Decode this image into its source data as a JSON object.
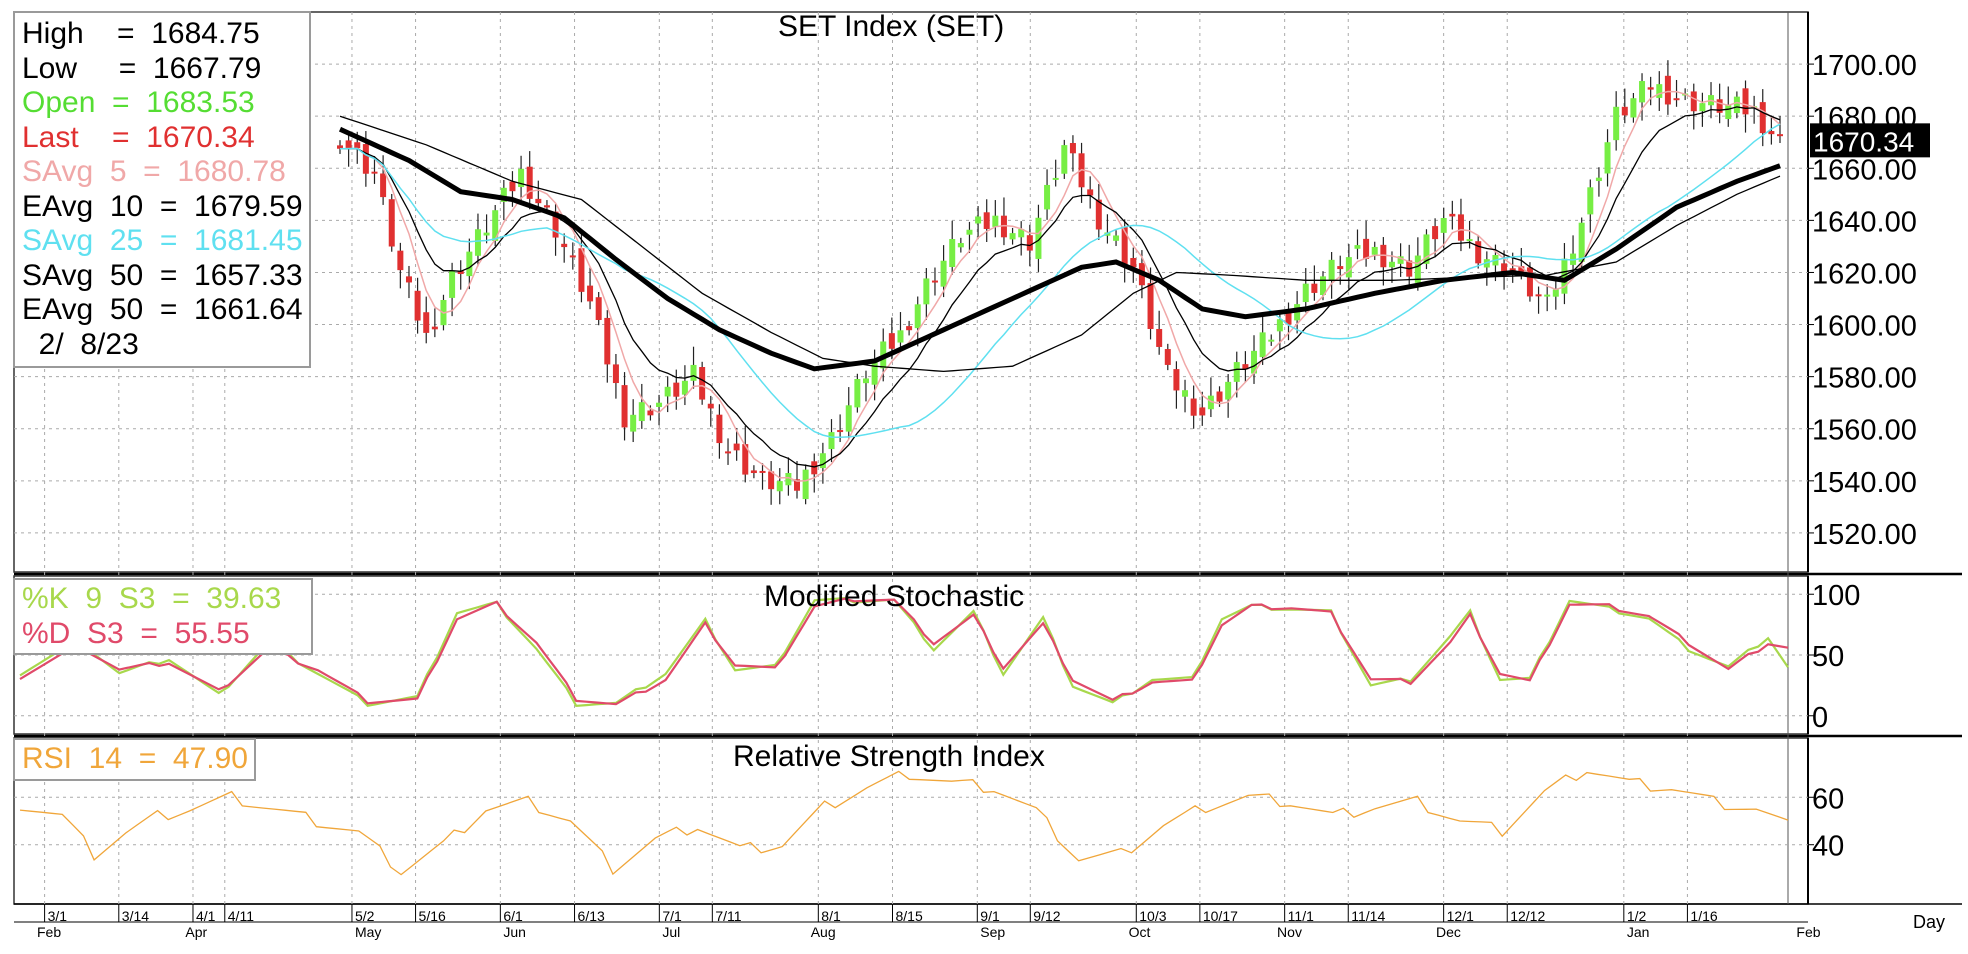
{
  "chart_data": [
    {
      "type": "candlestick",
      "title": "SET Index (SET)",
      "ylim": [
        1505,
        1720
      ],
      "yticks": [
        "1700.00",
        "1680.00",
        "1660.00",
        "1640.00",
        "1620.00",
        "1600.00",
        "1580.00",
        "1560.00",
        "1540.00",
        "1520.00"
      ],
      "ytick_values": [
        1700,
        1680,
        1660,
        1640,
        1620,
        1600,
        1580,
        1560,
        1540,
        1520
      ],
      "last_price_label": "1670.34",
      "last_price": 1670.34,
      "grid": true,
      "legend_position": "top-left",
      "legend": [
        {
          "text": "High    =  1684.75",
          "color": "#000000"
        },
        {
          "text": "Low     =  1667.79",
          "color": "#000000"
        },
        {
          "text": "Open  =  1683.53",
          "color": "#55dd33"
        },
        {
          "text": "Last    =  1670.34",
          "color": "#e03030"
        },
        {
          "text": "SAvg  5  =  1680.78",
          "color": "#f0a8a8"
        },
        {
          "text": "EAvg  10  =  1679.59",
          "color": "#000000"
        },
        {
          "text": "SAvg  25  =  1681.45",
          "color": "#5fe0f0"
        },
        {
          "text": "SAvg  50  =  1657.33",
          "color": "#000000"
        },
        {
          "text": "EAvg  50  =  1661.64",
          "color": "#000000"
        },
        {
          "text": "  2/  8/23",
          "color": "#000000"
        }
      ],
      "colors": {
        "up": "#77ee44",
        "down": "#e03030",
        "sma5": "#f0a8a8",
        "ema10": "#000000",
        "sma25": "#5fe0f0",
        "sma50": "#000000",
        "ema50": "#000000"
      },
      "close_anchors": [
        [
          0,
          1672
        ],
        [
          4,
          1658
        ],
        [
          7,
          1620
        ],
        [
          10,
          1595
        ],
        [
          13,
          1618
        ],
        [
          17,
          1638
        ],
        [
          21,
          1658
        ],
        [
          25,
          1637
        ],
        [
          29,
          1608
        ],
        [
          33,
          1565
        ],
        [
          37,
          1570
        ],
        [
          41,
          1580
        ],
        [
          45,
          1552
        ],
        [
          49,
          1540
        ],
        [
          53,
          1538
        ],
        [
          57,
          1556
        ],
        [
          61,
          1582
        ],
        [
          65,
          1596
        ],
        [
          68,
          1615
        ],
        [
          72,
          1634
        ],
        [
          76,
          1640
        ],
        [
          80,
          1632
        ],
        [
          84,
          1668
        ],
        [
          88,
          1641
        ],
        [
          92,
          1622
        ],
        [
          96,
          1580
        ],
        [
          100,
          1566
        ],
        [
          104,
          1582
        ],
        [
          108,
          1596
        ],
        [
          112,
          1613
        ],
        [
          116,
          1624
        ],
        [
          120,
          1628
        ],
        [
          124,
          1622
        ],
        [
          128,
          1640
        ],
        [
          132,
          1628
        ],
        [
          136,
          1620
        ],
        [
          140,
          1607
        ],
        [
          144,
          1640
        ],
        [
          148,
          1680
        ],
        [
          152,
          1692
        ],
        [
          156,
          1686
        ],
        [
          160,
          1684
        ],
        [
          164,
          1682
        ],
        [
          167,
          1670
        ]
      ],
      "ma_anchors": {
        "ema50": [
          [
            0,
            1675
          ],
          [
            8,
            1663
          ],
          [
            14,
            1651
          ],
          [
            20,
            1648
          ],
          [
            26,
            1641
          ],
          [
            32,
            1625
          ],
          [
            38,
            1610
          ],
          [
            44,
            1598
          ],
          [
            50,
            1589
          ],
          [
            55,
            1583
          ],
          [
            62,
            1586
          ],
          [
            70,
            1598
          ],
          [
            78,
            1610
          ],
          [
            86,
            1622
          ],
          [
            90,
            1624
          ],
          [
            95,
            1617
          ],
          [
            100,
            1606
          ],
          [
            105,
            1603
          ],
          [
            112,
            1606
          ],
          [
            120,
            1612
          ],
          [
            128,
            1617
          ],
          [
            136,
            1620
          ],
          [
            142,
            1617
          ],
          [
            148,
            1629
          ],
          [
            155,
            1645
          ],
          [
            162,
            1655
          ],
          [
            167,
            1661
          ]
        ],
        "sma50": [
          [
            0,
            1680
          ],
          [
            10,
            1669
          ],
          [
            20,
            1655
          ],
          [
            28,
            1648
          ],
          [
            35,
            1630
          ],
          [
            42,
            1612
          ],
          [
            50,
            1597
          ],
          [
            56,
            1587
          ],
          [
            62,
            1584
          ],
          [
            70,
            1582
          ],
          [
            78,
            1584
          ],
          [
            86,
            1596
          ],
          [
            92,
            1612
          ],
          [
            97,
            1620
          ],
          [
            103,
            1619
          ],
          [
            112,
            1617
          ],
          [
            122,
            1617
          ],
          [
            130,
            1618
          ],
          [
            140,
            1619
          ],
          [
            148,
            1624
          ],
          [
            155,
            1638
          ],
          [
            162,
            1650
          ],
          [
            167,
            1657
          ]
        ]
      },
      "x_labels": [
        "3/1",
        "3/14",
        "4/1",
        "4/11",
        "5/2",
        "5/16",
        "6/1",
        "6/13",
        "7/1",
        "7/11",
        "8/1",
        "8/15",
        "9/1",
        "9/12",
        "10/3",
        "10/17",
        "11/1",
        "11/14",
        "12/1",
        "12/12",
        "1/2",
        "1/16"
      ],
      "x_label_index": [
        1,
        8,
        15,
        18,
        30,
        36,
        44,
        51,
        59,
        64,
        74,
        81,
        89,
        94,
        104,
        110,
        118,
        124,
        133,
        139,
        150,
        156
      ],
      "months": [
        "Feb",
        "Apr",
        "May",
        "Jun",
        "Jul",
        "Aug",
        "Sep",
        "Oct",
        "Nov",
        "Dec",
        "Jan",
        "Feb"
      ],
      "month_index": [
        0,
        14,
        30,
        44,
        59,
        73,
        89,
        103,
        117,
        132,
        150,
        166
      ],
      "bars": 168,
      "period_label": "Day"
    },
    {
      "type": "line",
      "title": "Modified Stochastic",
      "ylim": [
        -15,
        115
      ],
      "yticks": [
        "100",
        "50",
        "0"
      ],
      "ytick_values": [
        100,
        50,
        0
      ],
      "legend": [
        {
          "text": "%K  9  S3  =  39.63",
          "color": "#a8d84c"
        },
        {
          "text": "%D  S3  =  55.55",
          "color": "#e04a6a"
        }
      ],
      "series": [
        {
          "name": "%K 9 S3",
          "color": "#a8d84c",
          "anchors": [
            [
              0,
              35
            ],
            [
              6,
              62
            ],
            [
              10,
              35
            ],
            [
              15,
              47
            ],
            [
              20,
              17
            ],
            [
              25,
              60
            ],
            [
              30,
              35
            ],
            [
              35,
              10
            ],
            [
              40,
              15
            ],
            [
              44,
              85
            ],
            [
              48,
              92
            ],
            [
              52,
              55
            ],
            [
              56,
              10
            ],
            [
              60,
              10
            ],
            [
              65,
              35
            ],
            [
              69,
              78
            ],
            [
              72,
              38
            ],
            [
              76,
              40
            ],
            [
              80,
              95
            ],
            [
              84,
              95
            ],
            [
              88,
              95
            ],
            [
              92,
              55
            ],
            [
              96,
              85
            ],
            [
              99,
              35
            ],
            [
              103,
              80
            ],
            [
              106,
              25
            ],
            [
              110,
              10
            ],
            [
              114,
              30
            ],
            [
              118,
              30
            ],
            [
              121,
              80
            ],
            [
              124,
              90
            ],
            [
              128,
              88
            ],
            [
              132,
              85
            ],
            [
              136,
              25
            ],
            [
              140,
              30
            ],
            [
              144,
              65
            ],
            [
              146,
              85
            ],
            [
              149,
              30
            ],
            [
              152,
              30
            ],
            [
              156,
              95
            ],
            [
              160,
              88
            ],
            [
              164,
              80
            ],
            [
              168,
              55
            ],
            [
              172,
              40
            ],
            [
              176,
              65
            ],
            [
              178,
              40
            ]
          ]
        },
        {
          "name": "%D S3",
          "color": "#e04a6a",
          "anchors": [
            [
              0,
              32
            ],
            [
              6,
              58
            ],
            [
              10,
              38
            ],
            [
              15,
              44
            ],
            [
              20,
              20
            ],
            [
              25,
              55
            ],
            [
              30,
              38
            ],
            [
              35,
              12
            ],
            [
              40,
              13
            ],
            [
              44,
              80
            ],
            [
              48,
              92
            ],
            [
              52,
              60
            ],
            [
              56,
              14
            ],
            [
              60,
              9
            ],
            [
              65,
              30
            ],
            [
              69,
              75
            ],
            [
              72,
              42
            ],
            [
              76,
              38
            ],
            [
              80,
              90
            ],
            [
              84,
              96
            ],
            [
              88,
              95
            ],
            [
              92,
              60
            ],
            [
              96,
              82
            ],
            [
              99,
              40
            ],
            [
              103,
              75
            ],
            [
              106,
              30
            ],
            [
              110,
              12
            ],
            [
              114,
              28
            ],
            [
              118,
              28
            ],
            [
              121,
              75
            ],
            [
              124,
              90
            ],
            [
              128,
              89
            ],
            [
              132,
              84
            ],
            [
              136,
              30
            ],
            [
              140,
              28
            ],
            [
              144,
              60
            ],
            [
              146,
              82
            ],
            [
              149,
              35
            ],
            [
              152,
              28
            ],
            [
              156,
              92
            ],
            [
              160,
              90
            ],
            [
              164,
              82
            ],
            [
              168,
              60
            ],
            [
              172,
              38
            ],
            [
              176,
              60
            ],
            [
              178,
              56
            ]
          ]
        }
      ]
    },
    {
      "type": "line",
      "title": "Relative Strength Index",
      "ylim": [
        15,
        85
      ],
      "yticks": [
        "60",
        "40"
      ],
      "ytick_values": [
        60,
        40
      ],
      "legend": [
        {
          "text": "RSI  14  =  47.90",
          "color": "#f0a63a"
        }
      ],
      "series": [
        {
          "name": "RSI 14",
          "color": "#f0a63a",
          "anchors": [
            [
              0,
              57
            ],
            [
              4,
              52
            ],
            [
              7,
              36
            ],
            [
              10,
              45
            ],
            [
              13,
              52
            ],
            [
              16,
              55
            ],
            [
              20,
              60
            ],
            [
              24,
              55
            ],
            [
              28,
              50
            ],
            [
              32,
              45
            ],
            [
              36,
              29
            ],
            [
              40,
              40
            ],
            [
              44,
              55
            ],
            [
              48,
              58
            ],
            [
              52,
              50
            ],
            [
              56,
              30
            ],
            [
              60,
              42
            ],
            [
              64,
              48
            ],
            [
              68,
              38
            ],
            [
              72,
              40
            ],
            [
              76,
              56
            ],
            [
              80,
              64
            ],
            [
              84,
              70
            ],
            [
              88,
              66
            ],
            [
              92,
              64
            ],
            [
              96,
              54
            ],
            [
              100,
              34
            ],
            [
              104,
              36
            ],
            [
              108,
              48
            ],
            [
              112,
              56
            ],
            [
              116,
              60
            ],
            [
              120,
              58
            ],
            [
              124,
              52
            ],
            [
              128,
              56
            ],
            [
              132,
              58
            ],
            [
              136,
              50
            ],
            [
              140,
              46
            ],
            [
              144,
              62
            ],
            [
              148,
              72
            ],
            [
              152,
              66
            ],
            [
              156,
              64
            ],
            [
              160,
              58
            ],
            [
              164,
              55
            ],
            [
              167,
              48
            ]
          ]
        }
      ]
    }
  ]
}
